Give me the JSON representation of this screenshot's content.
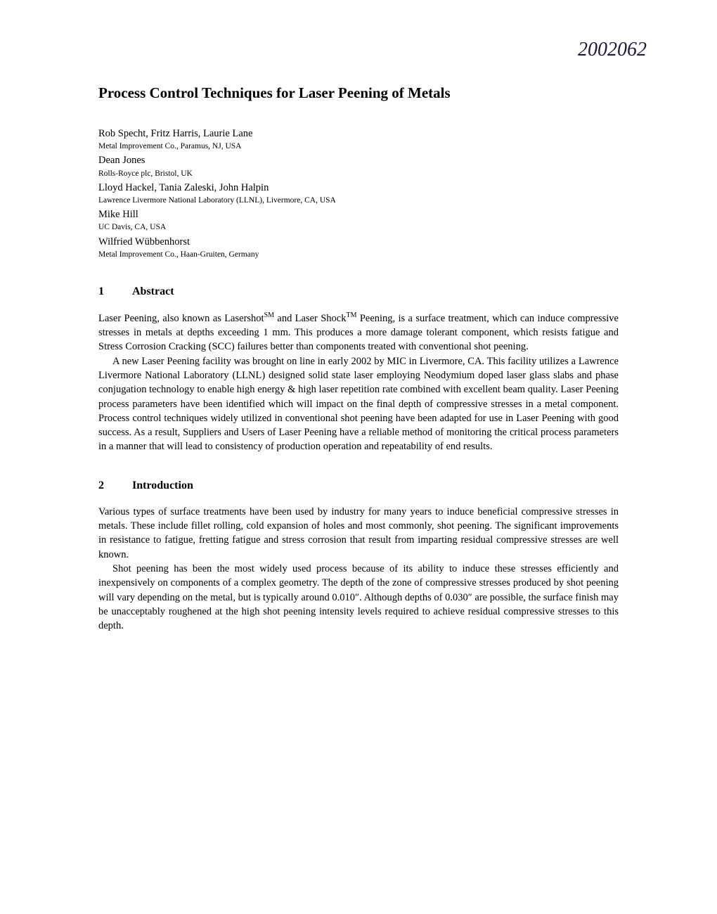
{
  "handwritten_note": "2002062",
  "title": "Process Control Techniques for Laser Peening of Metals",
  "authors": [
    {
      "names": "Rob Specht, Fritz Harris,  Laurie Lane",
      "affiliation": "Metal Improvement Co., Paramus, NJ, USA"
    },
    {
      "names": "Dean Jones",
      "affiliation": "Rolls-Royce plc, Bristol, UK"
    },
    {
      "names": "Lloyd Hackel, Tania Zaleski, John Halpin",
      "affiliation": "Lawrence Livermore National Laboratory (LLNL), Livermore, CA, USA"
    },
    {
      "names": "Mike Hill",
      "affiliation": "UC Davis, CA, USA"
    },
    {
      "names": "Wilfried Wübbenhorst",
      "affiliation": "Metal Improvement Co., Haan-Gruiten, Germany"
    }
  ],
  "sections": [
    {
      "number": "1",
      "heading": "Abstract",
      "paragraphs": [
        {
          "text_parts": [
            "Laser Peening, also known as Lasershot",
            "SM",
            " and Laser Shock",
            "TM",
            " Peening, is a surface treatment, which can induce compressive stresses in metals at depths exceeding 1 mm. This produces a more damage tolerant component, which resists fatigue and Stress Corrosion Cracking (SCC) failures better than components treated with conventional shot peening."
          ],
          "indent": false
        },
        {
          "text": "A new Laser Peening facility was brought on line in early 2002 by MIC in Livermore, CA. This facility utilizes a Lawrence Livermore National Laboratory (LLNL) designed solid state laser employing Neodymium doped laser glass slabs and phase conjugation technology to enable high energy & high laser repetition rate combined with excellent beam quality. Laser Peening process parameters have been identified which will impact on the final depth of compressive stresses in a metal component. Process control techniques widely utilized in conventional shot peening have been adapted for use in Laser Peening with good success. As a result, Suppliers and Users of Laser Peening have a reliable method of monitoring the critical process parameters in a manner that will lead to consistency of production operation and repeatability of end results.",
          "indent": true
        }
      ]
    },
    {
      "number": "2",
      "heading": "Introduction",
      "paragraphs": [
        {
          "text": "Various types of surface treatments have been used by industry for many years to induce beneficial compressive stresses in metals.  These include fillet rolling, cold expansion of holes and most commonly, shot peening. The significant improvements in resistance to fatigue, fretting fatigue and stress corrosion that result from imparting residual compressive stresses are well known.",
          "indent": false
        },
        {
          "text": "Shot peening has been the most widely used process because of its ability to induce these stresses efficiently and inexpensively on components of a complex geometry. The depth of the zone of compressive stresses produced by shot peening will vary depending on the metal, but is typically around 0.010″. Although depths of 0.030″ are possible, the surface finish may be unacceptably roughened at the high shot peening intensity levels required to achieve residual compressive stresses to this depth.",
          "indent": true
        }
      ]
    }
  ]
}
